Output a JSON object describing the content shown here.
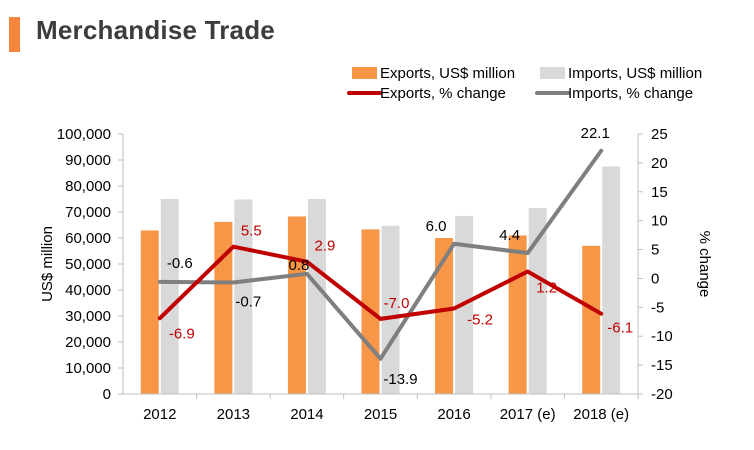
{
  "header": {
    "title": "Merchandise Trade"
  },
  "colors": {
    "accent": "#f7853c",
    "exports_bar": "#f79646",
    "imports_bar": "#d9d9d9",
    "exports_line": "#c00000",
    "imports_line": "#7f7f7f",
    "text": "#000000",
    "export_label": "#c00000"
  },
  "chart_data": {
    "type": "bar",
    "categories": [
      "2012",
      "2013",
      "2014",
      "2015",
      "2016",
      "2017 (e)",
      "2018 (e)"
    ],
    "series": [
      {
        "name": "Exports, US$ million",
        "type": "bar",
        "axis": "left",
        "values": [
          62900,
          66200,
          68300,
          63300,
          60000,
          61000,
          57000
        ]
      },
      {
        "name": "Imports, US$ million",
        "type": "bar",
        "axis": "left",
        "values": [
          75000,
          74800,
          75000,
          64700,
          68500,
          71500,
          87500
        ]
      },
      {
        "name": "Exports, % change",
        "type": "line",
        "axis": "right",
        "values": [
          -6.9,
          5.5,
          2.9,
          -7.0,
          -5.2,
          1.2,
          -6.1
        ],
        "labels": [
          "-6.9",
          "5.5",
          "2.9",
          "-7.0",
          "-5.2",
          "1.2",
          "-6.1"
        ]
      },
      {
        "name": "Imports, % change",
        "type": "line",
        "axis": "right",
        "values": [
          -0.6,
          -0.7,
          0.8,
          -13.9,
          6.0,
          4.4,
          22.1
        ],
        "labels": [
          "-0.6",
          "-0.7",
          "0.8",
          "-13.9",
          "6.0",
          "4.4",
          "22.1"
        ]
      }
    ],
    "ylabel": "US$ million",
    "ylim": [
      0,
      100000
    ],
    "yticks": [
      "100,000",
      "90,000",
      "80,000",
      "70,000",
      "60,000",
      "50,000",
      "40,000",
      "30,000",
      "20,000",
      "10,000",
      "0"
    ],
    "y2label": "% change",
    "y2lim": [
      -20,
      25
    ],
    "y2ticks": [
      "25",
      "20",
      "15",
      "10",
      "5",
      "0",
      "-5",
      "-10",
      "-15",
      "-20"
    ],
    "legend_position": "top-right",
    "grid": false
  }
}
